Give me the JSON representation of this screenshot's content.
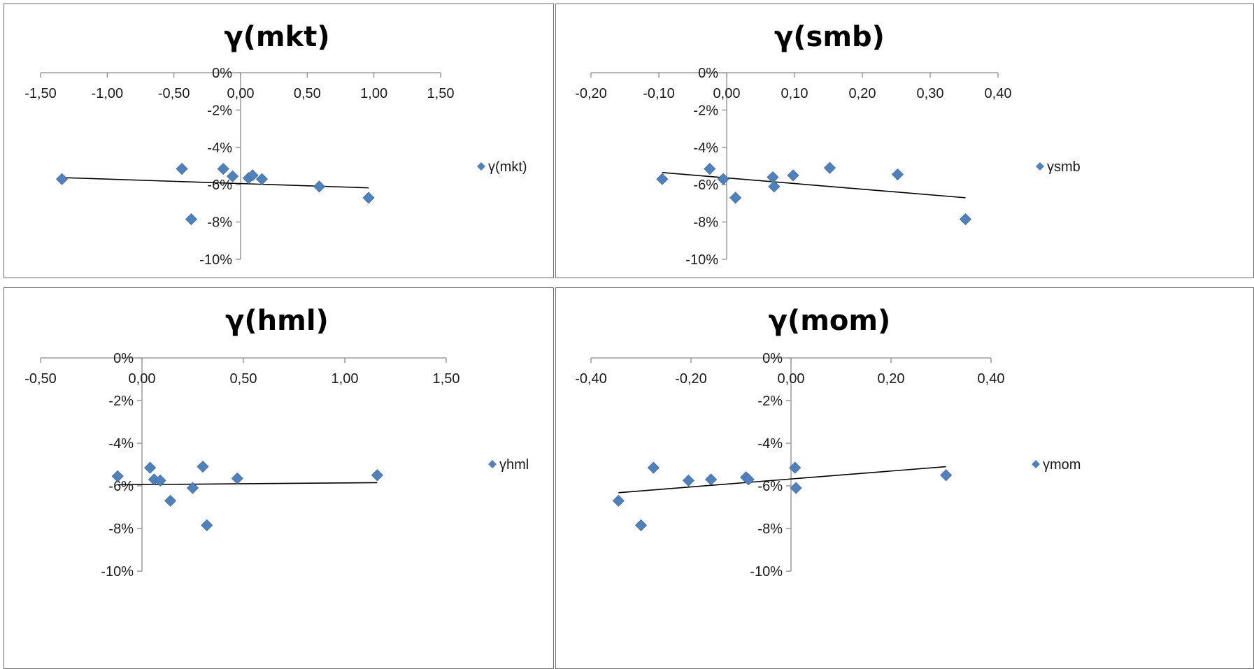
{
  "marker_color": "#4f81bd",
  "trendline_color": "#000000",
  "chart_data": [
    {
      "type": "scatter",
      "title": "γ(mkt)",
      "legend": "γ(mkt)",
      "legend_position": "right",
      "xlim": [
        -1.5,
        1.5
      ],
      "xticks": [
        -1.5,
        -1.0,
        -0.5,
        0.0,
        0.5,
        1.0,
        1.5
      ],
      "xtick_labels": [
        "-1,50",
        "-1,00",
        "-0,50",
        "0,00",
        "0,50",
        "1,00",
        "1,50"
      ],
      "ylim": [
        -10,
        0
      ],
      "yticks": [
        0,
        -2,
        -4,
        -6,
        -8,
        -10
      ],
      "ytick_labels": [
        "0%",
        "-2%",
        "-4%",
        "-6%",
        "-8%",
        "-10%"
      ],
      "x": [
        -1.34,
        -0.44,
        -0.37,
        -0.13,
        -0.06,
        0.06,
        0.09,
        0.16,
        0.59,
        0.96
      ],
      "y": [
        -5.7,
        -5.15,
        -7.85,
        -5.15,
        -5.55,
        -5.65,
        -5.5,
        -5.7,
        -6.1,
        -6.7
      ],
      "trendline": {
        "x": [
          -1.34,
          0.96
        ],
        "y": [
          -5.62,
          -6.17
        ]
      },
      "grid": false
    },
    {
      "type": "scatter",
      "title": "γ(smb)",
      "legend": "γsmb",
      "legend_position": "right",
      "xlim": [
        -0.2,
        0.4
      ],
      "xticks": [
        -0.2,
        -0.1,
        0.0,
        0.1,
        0.2,
        0.3,
        0.4
      ],
      "xtick_labels": [
        "-0,20",
        "-0,10",
        "0,00",
        "0,10",
        "0,20",
        "0,30",
        "0,40"
      ],
      "ylim": [
        -10,
        0
      ],
      "yticks": [
        0,
        -2,
        -4,
        -6,
        -8,
        -10
      ],
      "ytick_labels": [
        "0%",
        "-2%",
        "-4%",
        "-6%",
        "-8%",
        "-10%"
      ],
      "x": [
        -0.095,
        -0.025,
        -0.005,
        0.013,
        0.068,
        0.07,
        0.098,
        0.152,
        0.252,
        0.352
      ],
      "y": [
        -5.7,
        -5.15,
        -5.7,
        -6.7,
        -5.6,
        -6.1,
        -5.5,
        -5.1,
        -5.45,
        -7.85
      ],
      "trendline": {
        "x": [
          -0.095,
          0.352
        ],
        "y": [
          -5.35,
          -6.7
        ]
      },
      "grid": false
    },
    {
      "type": "scatter",
      "title": "γ(hml)",
      "legend": "γhml",
      "legend_position": "right",
      "xlim": [
        -0.5,
        1.5
      ],
      "xticks": [
        -0.5,
        0.0,
        0.5,
        1.0,
        1.5
      ],
      "xtick_labels": [
        "-0,50",
        "0,00",
        "0,50",
        "1,00",
        "1,50"
      ],
      "ylim": [
        -10,
        0
      ],
      "yticks": [
        0,
        -2,
        -4,
        -6,
        -8,
        -10
      ],
      "ytick_labels": [
        "0%",
        "-2%",
        "-4%",
        "-6%",
        "-8%",
        "-10%"
      ],
      "x": [
        -0.12,
        0.04,
        0.06,
        0.09,
        0.14,
        0.25,
        0.3,
        0.32,
        0.47,
        1.16
      ],
      "y": [
        -5.55,
        -5.15,
        -5.7,
        -5.75,
        -6.7,
        -6.1,
        -5.1,
        -7.85,
        -5.65,
        -5.5
      ],
      "trendline": {
        "x": [
          -0.12,
          1.16
        ],
        "y": [
          -5.95,
          -5.85
        ]
      },
      "grid": false
    },
    {
      "type": "scatter",
      "title": "γ(mom)",
      "legend": "γmom",
      "legend_position": "right",
      "xlim": [
        -0.4,
        0.4
      ],
      "xticks": [
        -0.4,
        -0.2,
        0.0,
        0.2,
        0.4
      ],
      "xtick_labels": [
        "-0,40",
        "-0,20",
        "0,00",
        "0,20",
        "0,40"
      ],
      "ylim": [
        -10,
        0
      ],
      "yticks": [
        0,
        -2,
        -4,
        -6,
        -8,
        -10
      ],
      "ytick_labels": [
        "0%",
        "-2%",
        "-4%",
        "-6%",
        "-8%",
        "-10%"
      ],
      "x": [
        -0.345,
        -0.3,
        -0.275,
        -0.205,
        -0.16,
        -0.09,
        -0.085,
        0.008,
        0.01,
        0.31
      ],
      "y": [
        -6.7,
        -7.85,
        -5.15,
        -5.75,
        -5.7,
        -5.6,
        -5.7,
        -5.15,
        -6.1,
        -5.5
      ],
      "trendline": {
        "x": [
          -0.345,
          0.31
        ],
        "y": [
          -6.32,
          -5.1
        ]
      },
      "grid": false
    }
  ]
}
